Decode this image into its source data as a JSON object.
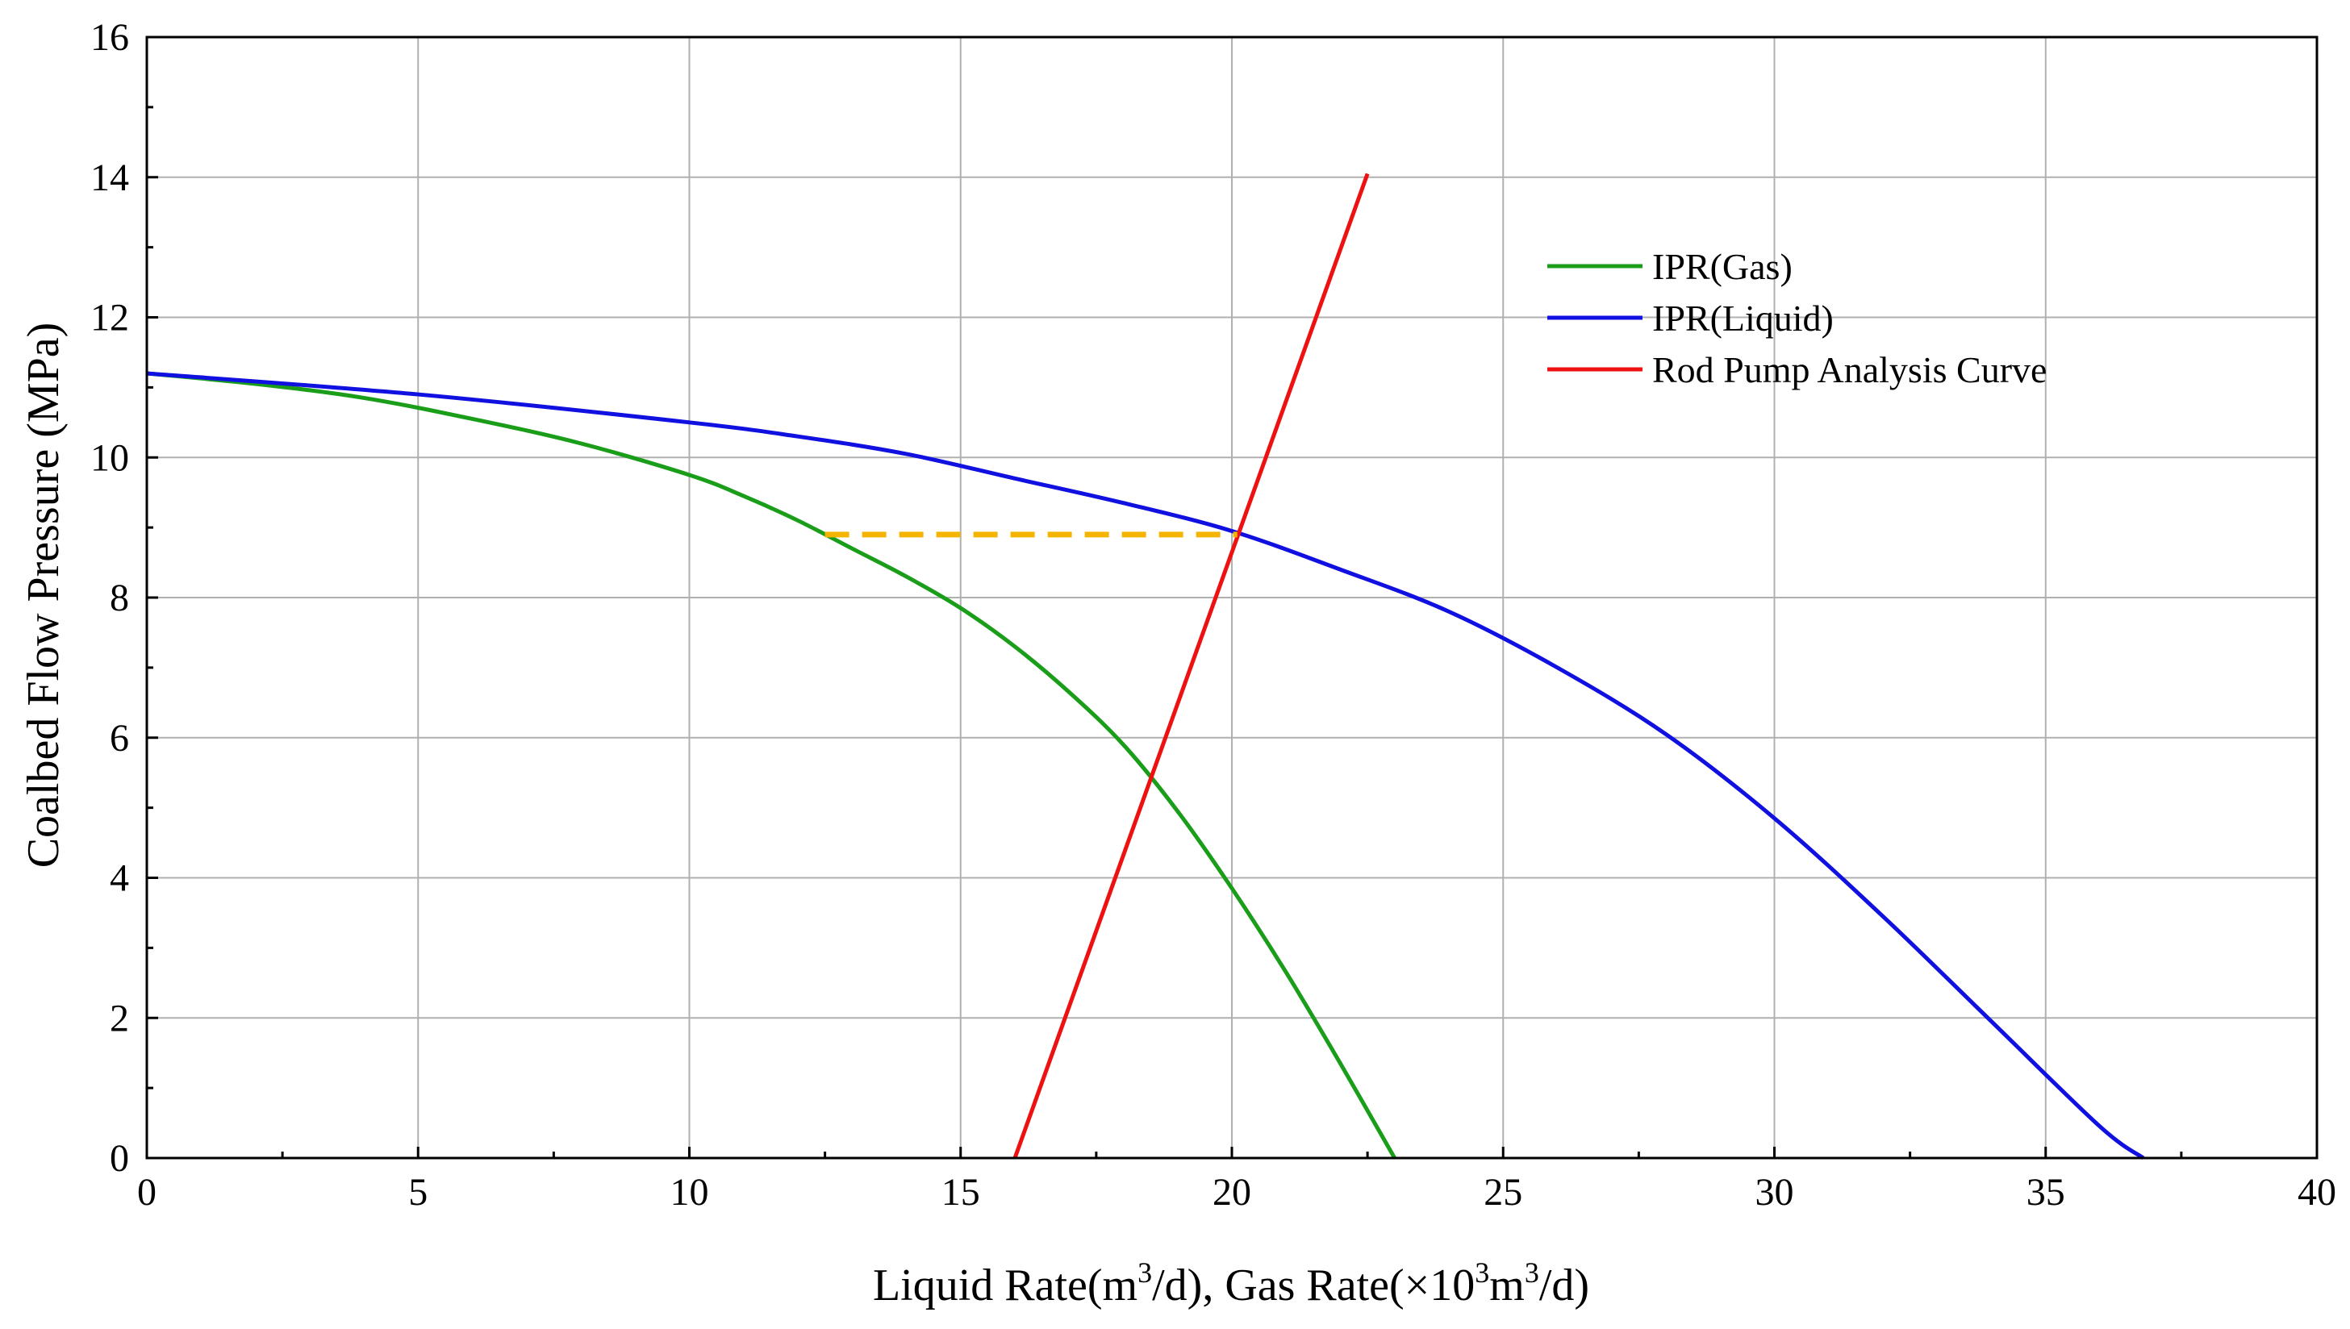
{
  "chart_data": {
    "type": "line",
    "title": "",
    "xlabel": "Liquid Rate(m3/d), Gas Rate(×103m3/d)",
    "xlabel_parts": {
      "a": "Liquid Rate(m",
      "sup1": "3",
      "b": "/d), Gas Rate(×10",
      "sup2": "3",
      "c": "m",
      "sup3": "3",
      "d": "/d)"
    },
    "ylabel": "Coalbed Flow Pressure (MPa)",
    "xlim": [
      0,
      40
    ],
    "ylim": [
      0,
      16
    ],
    "xticks": [
      0,
      5,
      10,
      15,
      20,
      25,
      30,
      35,
      40
    ],
    "yticks": [
      0,
      2,
      4,
      6,
      8,
      10,
      12,
      14,
      16
    ],
    "grid": true,
    "legend_position": "upper-right",
    "series": [
      {
        "name": "IPR(Gas)",
        "color": "#1a9e1a",
        "x": [
          0,
          2,
          4,
          6,
          8,
          10,
          11,
          12,
          13,
          14,
          15,
          16,
          17,
          18,
          19,
          20,
          21,
          22,
          23
        ],
        "y": [
          11.2,
          11.05,
          10.85,
          10.55,
          10.2,
          9.75,
          9.45,
          9.1,
          8.7,
          8.3,
          7.85,
          7.3,
          6.65,
          5.9,
          4.95,
          3.85,
          2.65,
          1.35,
          0
        ]
      },
      {
        "name": "IPR(Liquid)",
        "color": "#1010e0",
        "x": [
          0,
          5,
          10,
          12,
          14,
          16,
          18,
          20,
          22,
          24,
          26,
          28,
          30,
          32,
          34,
          36,
          36.8
        ],
        "y": [
          11.2,
          10.9,
          10.5,
          10.3,
          10.05,
          9.7,
          9.35,
          8.95,
          8.4,
          7.8,
          7.0,
          6.05,
          4.85,
          3.45,
          1.95,
          0.45,
          0
        ]
      },
      {
        "name": "Rod Pump Analysis Curve",
        "color": "#ee1111",
        "x": [
          16,
          22.5
        ],
        "y": [
          0,
          14.05
        ]
      }
    ],
    "annotations": [
      {
        "type": "dashed-line",
        "color": "#f4b400",
        "x": [
          12.5,
          20.1
        ],
        "y": [
          8.9,
          8.9
        ]
      }
    ]
  }
}
